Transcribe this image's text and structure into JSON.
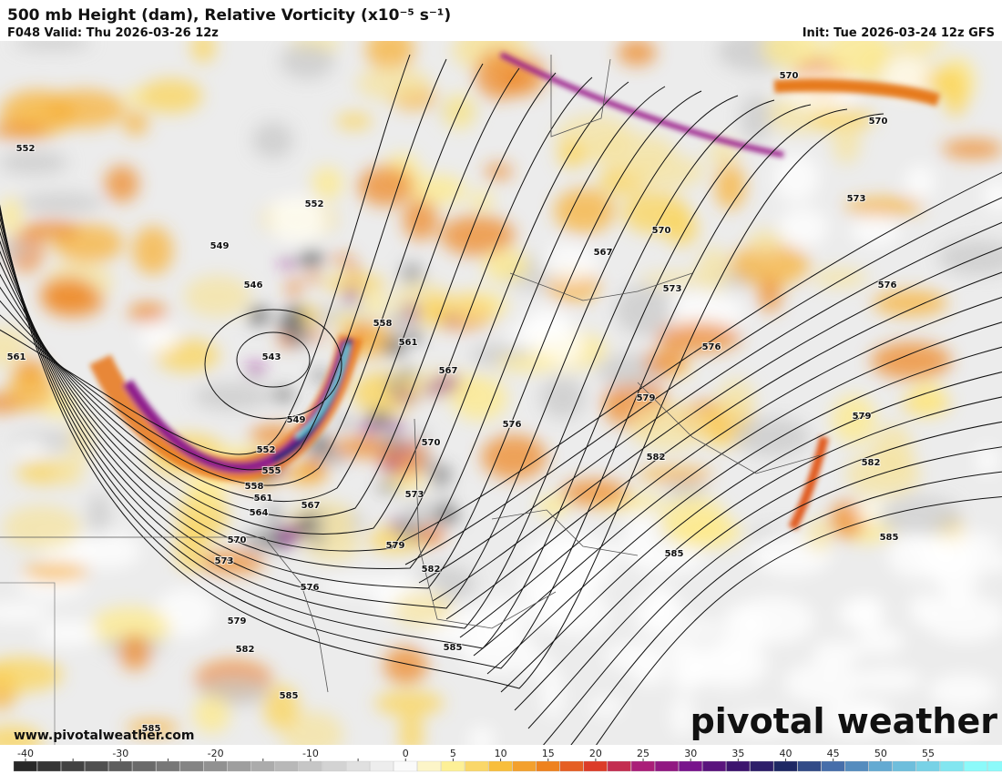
{
  "header": {
    "title": "500 mb Height (dam), Relative Vorticity (x10⁻⁵ s⁻¹)",
    "valid": "F048 Valid: Thu 2026-03-26 12z",
    "init": "Init: Tue 2026-03-24 12z GFS"
  },
  "map": {
    "contour_labels": [
      "552",
      "552",
      "549",
      "546",
      "543",
      "558",
      "561",
      "567",
      "549",
      "552",
      "555",
      "558",
      "561",
      "564",
      "567",
      "570",
      "573",
      "576",
      "579",
      "582",
      "585",
      "561",
      "570",
      "573",
      "579",
      "582",
      "585",
      "576",
      "579",
      "582",
      "585",
      "585",
      "582",
      "579",
      "576",
      "573",
      "576",
      "570",
      "567",
      "573",
      "570",
      "570",
      "585"
    ]
  },
  "footer": {
    "url": "www.pivotalweather.com",
    "watermark": "pivotal weather"
  },
  "colorbar": {
    "ticks": [
      -40,
      -35,
      -30,
      -25,
      -20,
      -15,
      -10,
      -5,
      0,
      5,
      10,
      15,
      20,
      25,
      30,
      35,
      40,
      45,
      50,
      55
    ],
    "labels": [
      "-40",
      "-30",
      "-20",
      "-10",
      "0",
      "5",
      "10",
      "15",
      "20",
      "25",
      "30",
      "35",
      "40",
      "45",
      "50",
      "55"
    ]
  }
}
